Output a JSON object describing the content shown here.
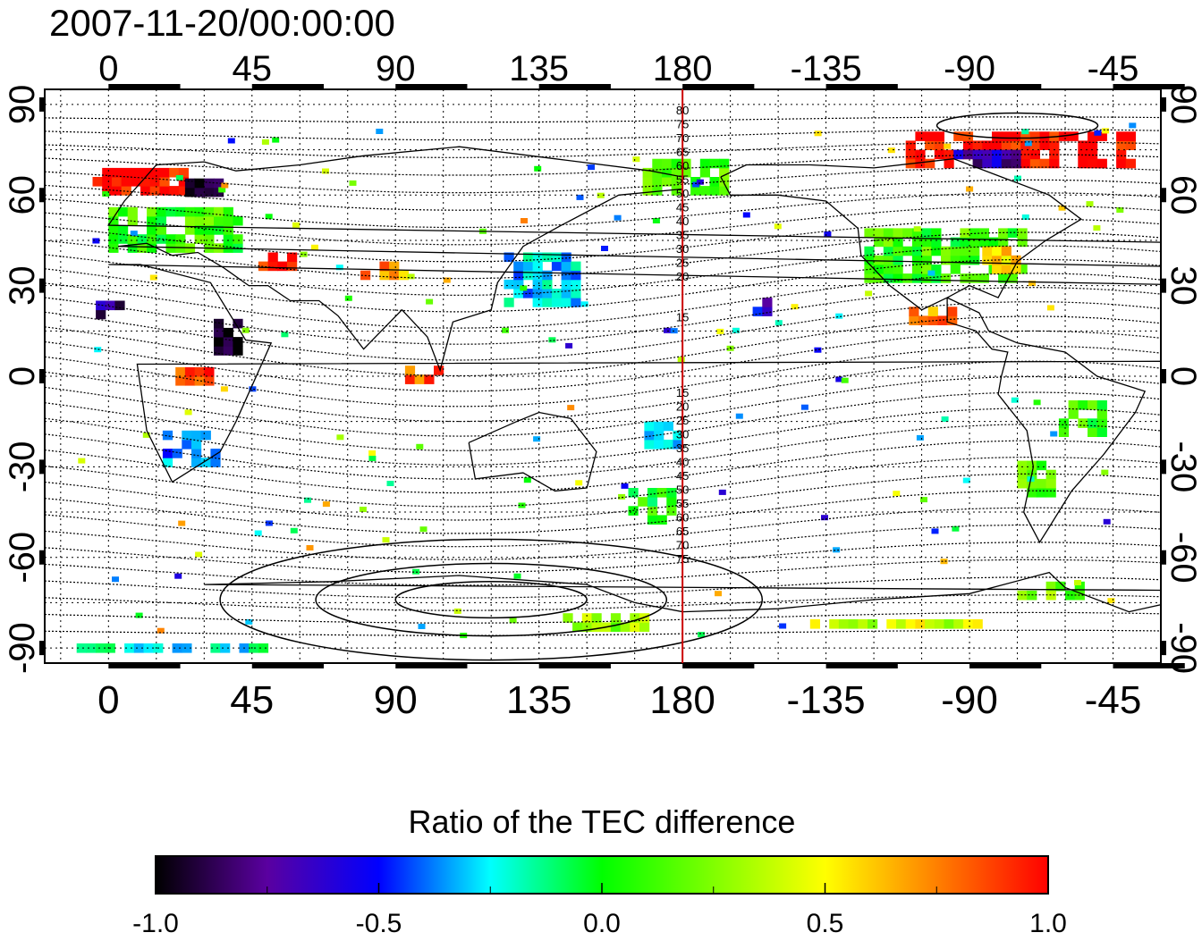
{
  "title": "2007-11-20/00:00:00",
  "lon_ticks": [
    {
      "lon": 0,
      "label": "0"
    },
    {
      "lon": 45,
      "label": "45"
    },
    {
      "lon": 90,
      "label": "90"
    },
    {
      "lon": 135,
      "label": "135"
    },
    {
      "lon": 180,
      "label": "180"
    },
    {
      "lon": 225,
      "label": "-135"
    },
    {
      "lon": 270,
      "label": "-90"
    },
    {
      "lon": 315,
      "label": "-45"
    }
  ],
  "lat_ticks": [
    {
      "lat": 90,
      "label": "90"
    },
    {
      "lat": 60,
      "label": "60"
    },
    {
      "lat": 30,
      "label": "30"
    },
    {
      "lat": 0,
      "label": "0"
    },
    {
      "lat": -30,
      "label": "-30"
    },
    {
      "lat": -60,
      "label": "-60"
    },
    {
      "lat": -90,
      "label": "-90"
    }
  ],
  "lon_range": [
    -20,
    330
  ],
  "lat_range": [
    -95,
    95
  ],
  "grid": "dotted, every 15 degrees",
  "reference_meridian_lon": 180,
  "reference_meridian_color": "#cc0000",
  "magnetic_latitude_labels": {
    "north": [
      "80",
      "75",
      "70",
      "65",
      "60",
      "55",
      "50",
      "45",
      "40",
      "35",
      "30",
      "25",
      "20",
      "15"
    ],
    "south": [
      "15",
      "20",
      "25",
      "30",
      "35",
      "40",
      "45",
      "50",
      "55",
      "60",
      "65",
      "70",
      "75"
    ]
  },
  "colorbar": {
    "title": "Ratio of the TEC difference",
    "min": -1.0,
    "max": 1.0,
    "tick_labels": [
      "-1.0",
      "-0.5",
      "0.0",
      "0.5",
      "1.0"
    ],
    "stops": [
      "#000000",
      "#5a00a0",
      "#0000ff",
      "#00ffff",
      "#00ff00",
      "#80ff00",
      "#ffff00",
      "#ff8000",
      "#ff0000"
    ]
  },
  "tec_patches": [
    {
      "lon": 10,
      "lat": 64,
      "w": 30,
      "h": 8,
      "v": 1.0
    },
    {
      "lon": 30,
      "lat": 62,
      "w": 12,
      "h": 5,
      "v": -0.9
    },
    {
      "lon": 20,
      "lat": 48,
      "w": 40,
      "h": 14,
      "v": 0.1
    },
    {
      "lon": 55,
      "lat": 38,
      "w": 16,
      "h": 6,
      "v": 0.85
    },
    {
      "lon": 85,
      "lat": 35,
      "w": 18,
      "h": 6,
      "v": 0.7
    },
    {
      "lon": 135,
      "lat": 32,
      "w": 22,
      "h": 18,
      "v": -0.3
    },
    {
      "lon": 0,
      "lat": 20,
      "w": 8,
      "h": 8,
      "v": -0.75
    },
    {
      "lon": 37,
      "lat": 12,
      "w": 8,
      "h": 10,
      "v": -0.95
    },
    {
      "lon": 27,
      "lat": 0,
      "w": 12,
      "h": 6,
      "v": 0.9
    },
    {
      "lon": 98,
      "lat": 0,
      "w": 10,
      "h": 5,
      "v": 0.8
    },
    {
      "lon": 25,
      "lat": -25,
      "w": 16,
      "h": 10,
      "v": -0.4
    },
    {
      "lon": 170,
      "lat": -43,
      "w": 14,
      "h": 12,
      "v": 0.05
    },
    {
      "lon": 175,
      "lat": -20,
      "w": 14,
      "h": 8,
      "v": -0.35
    },
    {
      "lon": 180,
      "lat": 65,
      "w": 25,
      "h": 10,
      "v": 0.15
    },
    {
      "lon": 262,
      "lat": 40,
      "w": 50,
      "h": 18,
      "v": 0.1
    },
    {
      "lon": 280,
      "lat": 38,
      "w": 12,
      "h": 8,
      "v": 0.55
    },
    {
      "lon": 258,
      "lat": 20,
      "w": 14,
      "h": 6,
      "v": 0.75
    },
    {
      "lon": 205,
      "lat": 22,
      "w": 6,
      "h": 4,
      "v": -0.6
    },
    {
      "lon": 285,
      "lat": 75,
      "w": 70,
      "h": 12,
      "v": 1.0
    },
    {
      "lon": 275,
      "lat": 72,
      "w": 20,
      "h": 6,
      "v": -0.7
    },
    {
      "lon": 305,
      "lat": -15,
      "w": 14,
      "h": 10,
      "v": 0.1
    },
    {
      "lon": 290,
      "lat": -35,
      "w": 10,
      "h": 10,
      "v": 0.15
    },
    {
      "lon": 295,
      "lat": -72,
      "w": 20,
      "h": 4,
      "v": 0.2
    },
    {
      "lon": 155,
      "lat": -82,
      "w": 25,
      "h": 5,
      "v": 0.3
    },
    {
      "lon": 20,
      "lat": -90,
      "w": 60,
      "h": 3,
      "v": -0.2
    },
    {
      "lon": 250,
      "lat": -82,
      "w": 60,
      "h": 3,
      "v": 0.4
    }
  ]
}
